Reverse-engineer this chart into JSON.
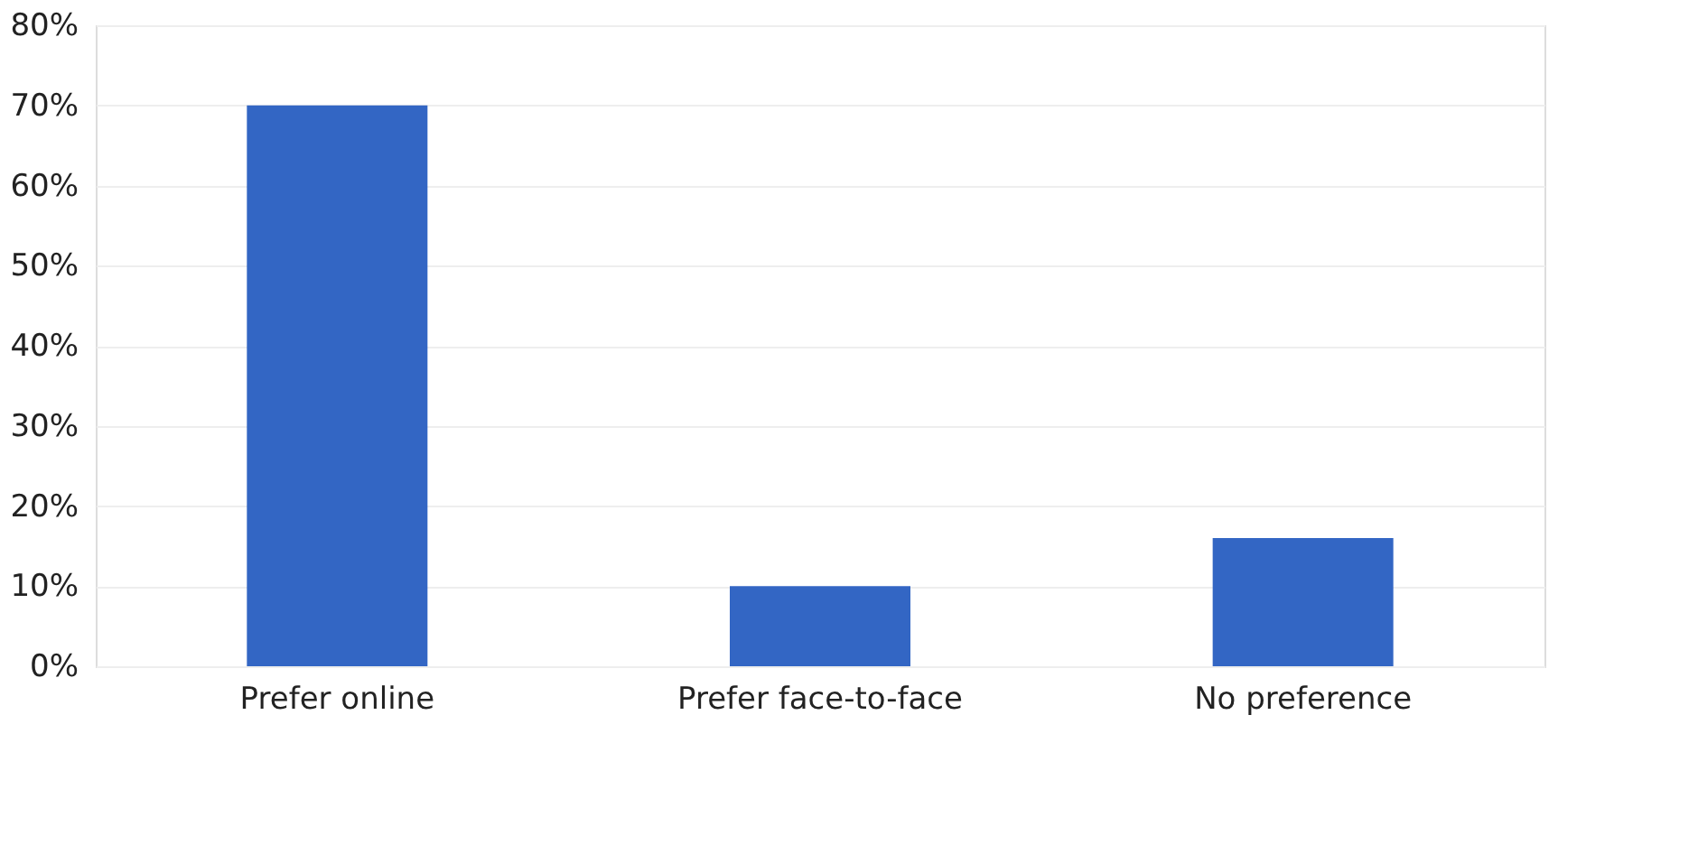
{
  "chart_data": {
    "type": "bar",
    "categories": [
      "Prefer online",
      "Prefer face-to-face",
      "No preference"
    ],
    "values": [
      70,
      10,
      16
    ],
    "color": "#3366c4",
    "ylim": [
      0,
      80
    ],
    "yticks": [
      {
        "value": 0,
        "label": "0%"
      },
      {
        "value": 10,
        "label": "10%"
      },
      {
        "value": 20,
        "label": "20%"
      },
      {
        "value": 30,
        "label": "30%"
      },
      {
        "value": 40,
        "label": "40%"
      },
      {
        "value": 50,
        "label": "50%"
      },
      {
        "value": 60,
        "label": "60%"
      },
      {
        "value": 70,
        "label": "70%"
      },
      {
        "value": 80,
        "label": "80%"
      }
    ],
    "grid": "y"
  }
}
